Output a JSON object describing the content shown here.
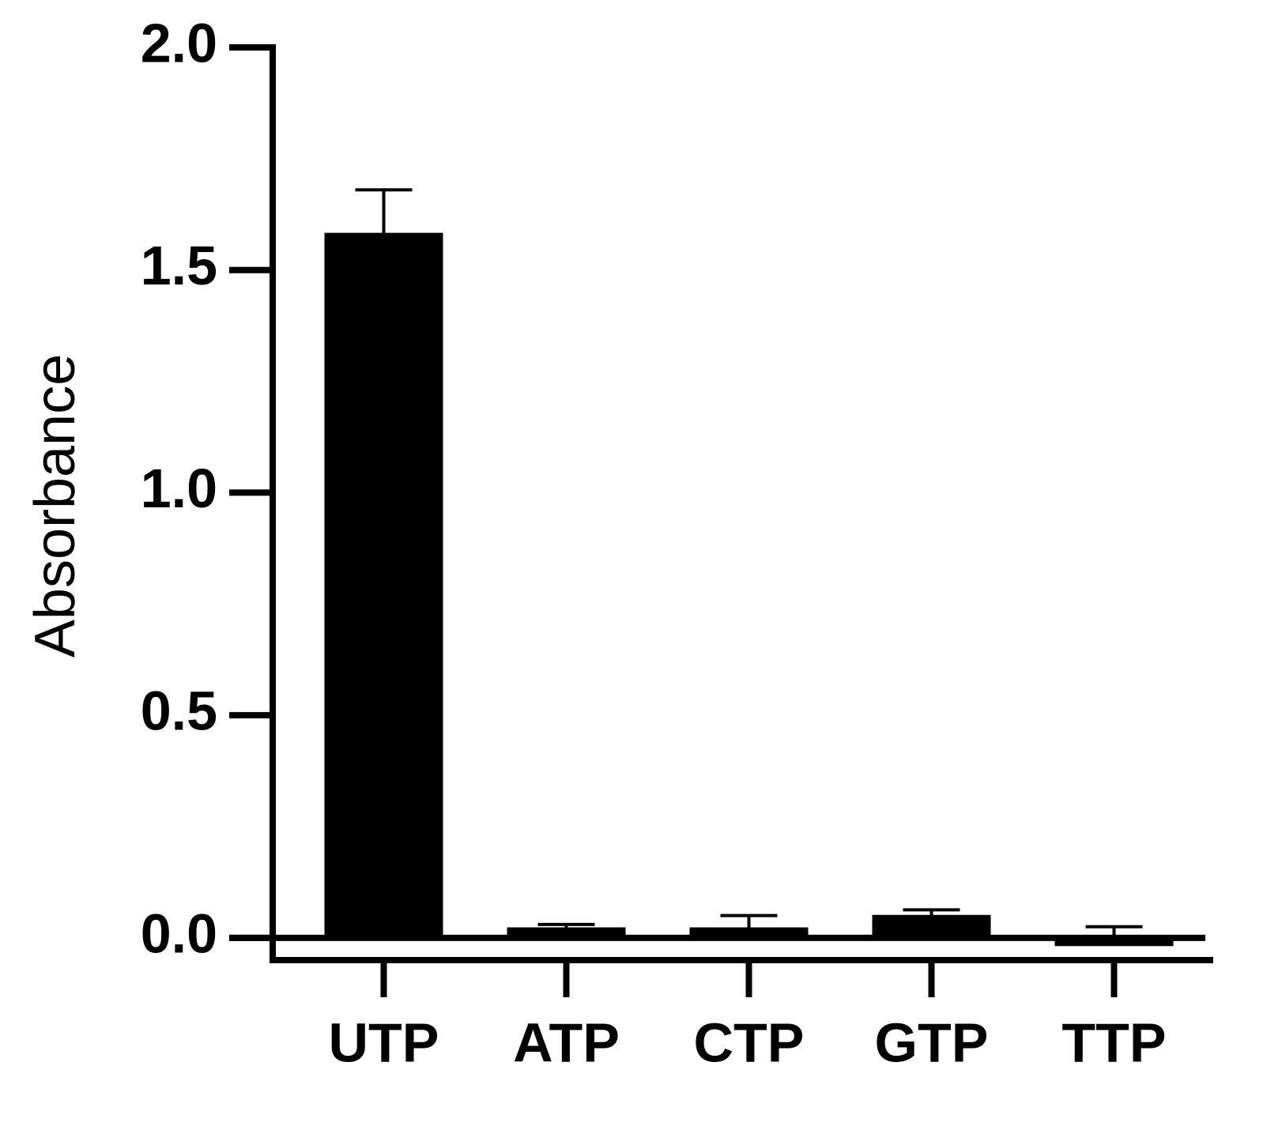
{
  "chart_data": {
    "type": "bar",
    "y_label": "Absorbance",
    "categories": [
      "UTP",
      "ATP",
      "CTP",
      "GTP",
      "TTP"
    ],
    "values": [
      1.58,
      0.02,
      0.02,
      0.048,
      -0.015
    ],
    "errors": [
      0.1,
      0.01,
      0.03,
      0.015,
      0.04
    ],
    "color": "#000000",
    "ylim": [
      -0.05,
      2.0
    ],
    "yticks": [
      {
        "value": 0,
        "label": "0.0"
      },
      0.5,
      {
        "value": 1,
        "label": "1.0"
      },
      1.5,
      {
        "value": 2,
        "label": "2.0"
      }
    ]
  }
}
